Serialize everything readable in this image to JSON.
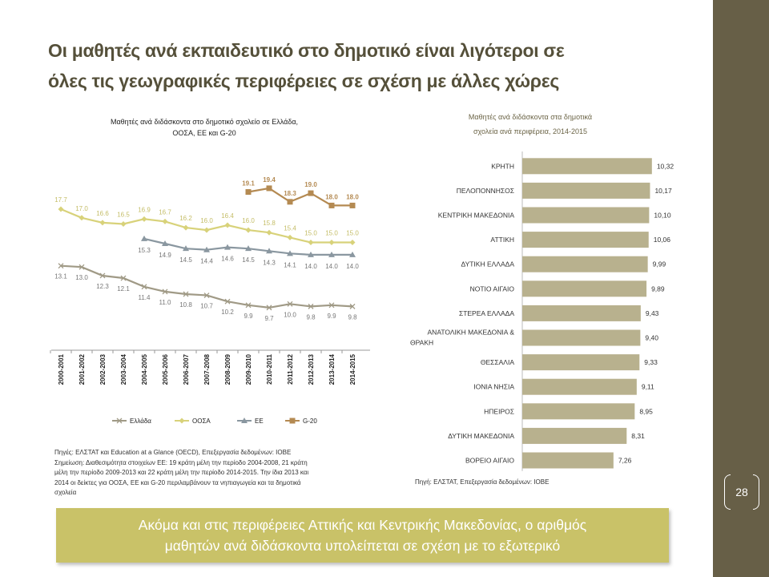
{
  "slide": {
    "title_line1": "Οι μαθητές ανά εκπαιδευτικό στο δημοτικό είναι λιγότεροι σε",
    "title_line2": "όλες τις γεωγραφικές περιφέρειες σε σχέση με άλλες χώρες",
    "page_number": "28",
    "footer_line1": "Ακόμα και στις περιφέρειες Αττικής και Κεντρικής Μακεδονίας, ο αριθμός",
    "footer_line2": "μαθητών ανά διδάσκοντα υπολείπεται σε σχέση με το εξωτερικό",
    "notes_left": [
      "Πηγές: ΕΛΣΤΑΤ και Education at a Glance (OECD), Επεξεργασία δεδομένων: ΙΟΒΕ",
      "Σημείωση: Διαθεσιμότητα στοιχείων ΕΕ: 19 κράτη μέλη την περίοδο 2004-2008, 21 κράτη",
      "μέλη την περίοδο 2009-2013 και 22 κράτη μέλη την περίοδο 2014-2015. Την ίδια 2013 και",
      "2014 οι δείκτες για ΟΟΣΑ, ΕΕ και G-20 περιλαμβάνουν τα νηπιαγωγεία και τα δημοτικά",
      "σχολεία"
    ],
    "notes_right": "Πηγή: ΕΛΣΤΑΤ, Επεξεργασία δεδομένων: ΙΟΒΕ"
  },
  "chart_data": [
    {
      "type": "line",
      "title_line1": "Μαθητές ανά διδάσκοντα στο δημοτικό σχολείο σε Ελλάδα,",
      "title_line2": "ΟΟΣΑ, ΕΕ και G-20",
      "categories": [
        "2000-2001",
        "2001-2002",
        "2002-2003",
        "2003-2004",
        "2004-2005",
        "2005-2006",
        "2006-2007",
        "2007-2008",
        "2008-2009",
        "2009-2010",
        "2010-2011",
        "2011-2012",
        "2012-2013",
        "2013-2014",
        "2014-2015"
      ],
      "series": [
        {
          "name": "Ελλάδα",
          "color": "#a09a86",
          "marker": "x",
          "values": [
            13.1,
            13.0,
            12.3,
            12.1,
            11.4,
            11.0,
            10.8,
            10.7,
            10.2,
            9.9,
            9.7,
            10.0,
            9.8,
            9.9,
            9.8
          ]
        },
        {
          "name": "ΟΟΣΑ",
          "color": "#d8d27a",
          "marker": "diamond",
          "values": [
            17.7,
            17.0,
            16.6,
            16.5,
            16.9,
            16.7,
            16.2,
            16.0,
            16.4,
            16.0,
            15.8,
            15.4,
            15.0,
            15.0,
            15.0
          ]
        },
        {
          "name": "ΕΕ",
          "color": "#8a97a0",
          "marker": "triangle",
          "values": [
            null,
            null,
            null,
            null,
            15.3,
            14.9,
            14.5,
            14.4,
            14.6,
            14.5,
            14.3,
            14.1,
            14.0,
            14.0,
            14.0
          ]
        },
        {
          "name": "G-20",
          "color": "#b48a52",
          "marker": "square",
          "values": [
            null,
            null,
            null,
            null,
            null,
            null,
            null,
            null,
            null,
            19.1,
            19.4,
            18.3,
            19.0,
            18.0,
            18.0
          ]
        }
      ],
      "ylim": [
        8,
        22
      ],
      "grid": false,
      "legend": "bottom"
    },
    {
      "type": "bar",
      "orientation": "horizontal",
      "title_line1": "Μαθητές ανά διδάσκοντα στα δημοτικά",
      "title_line2": "σχολεία ανά περιφέρεια, 2014-2015",
      "categories": [
        "ΚΡΗΤΗ",
        "ΠΕΛΟΠΟΝΝΗΣΟΣ",
        "ΚΕΝΤΡΙΚΗ ΜΑΚΕΔΟΝΙΑ",
        "ΑΤΤΙΚΗ",
        "ΔΥΤΙΚΗ ΕΛΛΑΔΑ",
        "ΝΟΤΙΟ ΑΙΓΑΙΟ",
        "ΣΤΕΡΕΑ ΕΛΛΑΔΑ",
        "ΑΝΑΤΟΛΙΚΗ ΜΑΚΕΔΟΝΙΑ & ΘΡΑΚΗ",
        "ΘΕΣΣΑΛΙΑ",
        "ΙΟΝΙΑ ΝΗΣΙΑ",
        "ΗΠΕΙΡΟΣ",
        "ΔΥΤΙΚΗ ΜΑΚΕΔΟΝΙΑ",
        "ΒΟΡΕΙΟ ΑΙΓΑΙΟ"
      ],
      "values": [
        10.32,
        10.17,
        10.1,
        10.06,
        9.99,
        9.89,
        9.43,
        9.4,
        9.33,
        9.11,
        8.95,
        8.31,
        7.26
      ],
      "value_labels": [
        "10,32",
        "10,17",
        "10,10",
        "10,06",
        "9,99",
        "9,89",
        "9,43",
        "9,40",
        "9,33",
        "9,11",
        "8,95",
        "8,31",
        "7,26"
      ],
      "color": "#b8b18e",
      "xlim": [
        0,
        12.5
      ]
    }
  ]
}
